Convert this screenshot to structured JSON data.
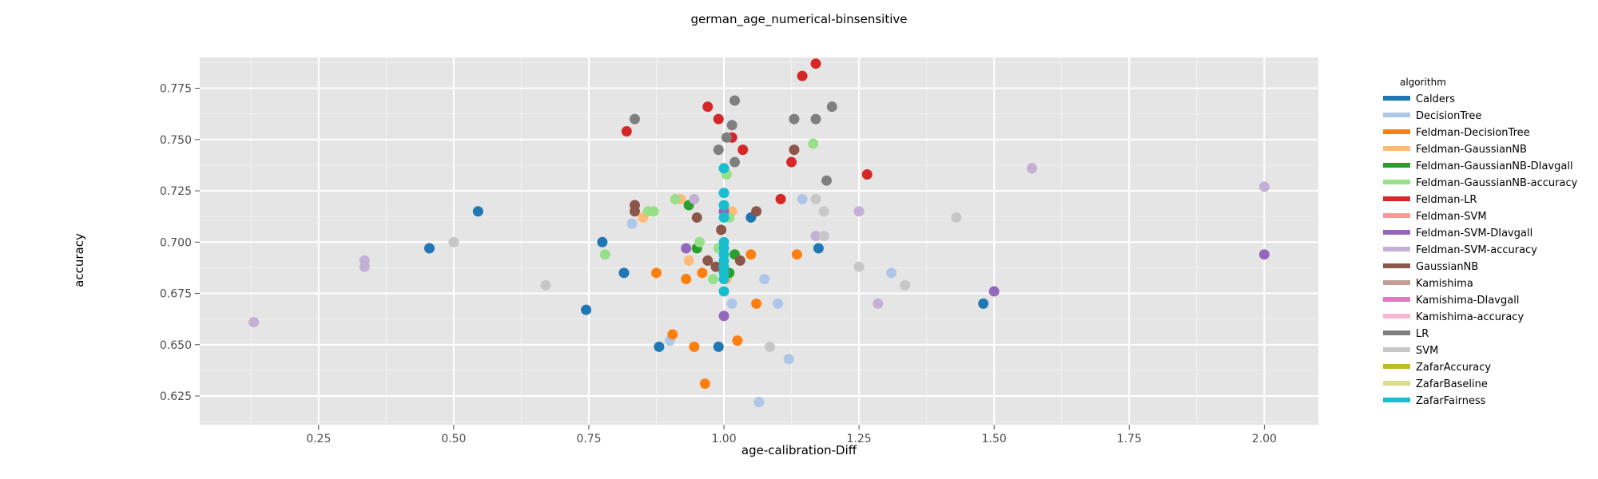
{
  "chart_data": {
    "type": "scatter",
    "title": "german_age_numerical-binsensitive",
    "xlabel": "age-calibration-Diff",
    "ylabel": "accuracy",
    "xlim": [
      0.03,
      2.1
    ],
    "ylim": [
      0.611,
      0.79
    ],
    "xticks": [
      0.25,
      0.5,
      0.75,
      1.0,
      1.25,
      1.5,
      1.75,
      2.0
    ],
    "xtick_labels": [
      "0.25",
      "0.50",
      "0.75",
      "1.00",
      "1.25",
      "1.50",
      "1.75",
      "2.00"
    ],
    "yticks": [
      0.625,
      0.65,
      0.675,
      0.7,
      0.725,
      0.75,
      0.775
    ],
    "ytick_labels": [
      "0.625",
      "0.650",
      "0.675",
      "0.700",
      "0.725",
      "0.750",
      "0.775"
    ],
    "grid": true,
    "legend_title": "algorithm",
    "legend_position": "right",
    "series": [
      {
        "name": "Calders",
        "color": "#1f77b4",
        "points": [
          [
            0.455,
            0.697
          ],
          [
            0.545,
            0.715
          ],
          [
            0.745,
            0.667
          ],
          [
            0.775,
            0.7
          ],
          [
            0.815,
            0.685
          ],
          [
            0.88,
            0.649
          ],
          [
            0.99,
            0.649
          ],
          [
            1.05,
            0.712
          ],
          [
            1.175,
            0.697
          ],
          [
            1.48,
            0.67
          ]
        ]
      },
      {
        "name": "DecisionTree",
        "color": "#aec7e8",
        "points": [
          [
            0.83,
            0.709
          ],
          [
            0.9,
            0.652
          ],
          [
            1.015,
            0.67
          ],
          [
            1.065,
            0.622
          ],
          [
            1.075,
            0.682
          ],
          [
            1.1,
            0.67
          ],
          [
            1.12,
            0.643
          ],
          [
            1.145,
            0.721
          ],
          [
            1.31,
            0.685
          ]
        ]
      },
      {
        "name": "Feldman-DecisionTree",
        "color": "#ff7f0e",
        "points": [
          [
            0.875,
            0.685
          ],
          [
            0.905,
            0.655
          ],
          [
            0.93,
            0.682
          ],
          [
            0.945,
            0.649
          ],
          [
            0.96,
            0.685
          ],
          [
            0.965,
            0.631
          ],
          [
            1.025,
            0.652
          ],
          [
            1.05,
            0.694
          ],
          [
            1.06,
            0.67
          ],
          [
            1.135,
            0.694
          ]
        ]
      },
      {
        "name": "Feldman-GaussianNB",
        "color": "#ffbb78",
        "points": [
          [
            0.85,
            0.712
          ],
          [
            0.92,
            0.721
          ],
          [
            0.935,
            0.691
          ],
          [
            1.005,
            0.682
          ],
          [
            1.015,
            0.715
          ]
        ]
      },
      {
        "name": "Feldman-GaussianNB-DIavgall",
        "color": "#2ca02c",
        "points": [
          [
            0.935,
            0.718
          ],
          [
            0.95,
            0.697
          ],
          [
            1.01,
            0.685
          ],
          [
            1.02,
            0.694
          ]
        ]
      },
      {
        "name": "Feldman-GaussianNB-accuracy",
        "color": "#98df8a",
        "points": [
          [
            0.78,
            0.694
          ],
          [
            0.86,
            0.715
          ],
          [
            0.87,
            0.715
          ],
          [
            0.91,
            0.721
          ],
          [
            0.955,
            0.7
          ],
          [
            0.98,
            0.682
          ],
          [
            0.99,
            0.697
          ],
          [
            1.005,
            0.733
          ],
          [
            1.01,
            0.712
          ],
          [
            1.165,
            0.748
          ]
        ]
      },
      {
        "name": "Feldman-LR",
        "color": "#d62728",
        "points": [
          [
            0.82,
            0.754
          ],
          [
            0.97,
            0.766
          ],
          [
            0.99,
            0.76
          ],
          [
            1.015,
            0.751
          ],
          [
            1.035,
            0.745
          ],
          [
            1.105,
            0.721
          ],
          [
            1.125,
            0.739
          ],
          [
            1.145,
            0.781
          ],
          [
            1.17,
            0.787
          ],
          [
            1.265,
            0.733
          ]
        ]
      },
      {
        "name": "Feldman-SVM",
        "color": "#ff9896",
        "points": []
      },
      {
        "name": "Feldman-SVM-DIavgall",
        "color": "#9467bd",
        "points": [
          [
            0.93,
            0.697
          ],
          [
            1.0,
            0.664
          ],
          [
            1.0,
            0.715
          ],
          [
            1.5,
            0.676
          ],
          [
            2.0,
            0.694
          ]
        ]
      },
      {
        "name": "Feldman-SVM-accuracy",
        "color": "#c5b0d5",
        "points": [
          [
            0.13,
            0.661
          ],
          [
            0.335,
            0.691
          ],
          [
            0.335,
            0.688
          ],
          [
            0.945,
            0.721
          ],
          [
            1.17,
            0.703
          ],
          [
            1.25,
            0.715
          ],
          [
            1.285,
            0.67
          ],
          [
            1.57,
            0.736
          ],
          [
            2.0,
            0.727
          ]
        ]
      },
      {
        "name": "GaussianNB",
        "color": "#8c564b",
        "points": [
          [
            0.835,
            0.715
          ],
          [
            0.835,
            0.718
          ],
          [
            0.95,
            0.712
          ],
          [
            0.97,
            0.691
          ],
          [
            0.985,
            0.688
          ],
          [
            0.995,
            0.706
          ],
          [
            1.03,
            0.691
          ],
          [
            1.06,
            0.715
          ],
          [
            1.13,
            0.745
          ]
        ]
      },
      {
        "name": "Kamishima",
        "color": "#c49c94",
        "points": []
      },
      {
        "name": "Kamishima-DIavgall",
        "color": "#e377c2",
        "points": []
      },
      {
        "name": "Kamishima-accuracy",
        "color": "#f7b6d2",
        "points": []
      },
      {
        "name": "LR",
        "color": "#7f7f7f",
        "points": [
          [
            0.835,
            0.76
          ],
          [
            0.99,
            0.745
          ],
          [
            1.005,
            0.751
          ],
          [
            1.015,
            0.757
          ],
          [
            1.02,
            0.739
          ],
          [
            1.02,
            0.769
          ],
          [
            1.13,
            0.76
          ],
          [
            1.17,
            0.76
          ],
          [
            1.19,
            0.73
          ],
          [
            1.2,
            0.766
          ]
        ]
      },
      {
        "name": "SVM",
        "color": "#c7c7c7",
        "points": [
          [
            0.5,
            0.7
          ],
          [
            0.67,
            0.679
          ],
          [
            1.085,
            0.649
          ],
          [
            1.17,
            0.721
          ],
          [
            1.185,
            0.715
          ],
          [
            1.185,
            0.703
          ],
          [
            1.25,
            0.688
          ],
          [
            1.335,
            0.679
          ],
          [
            1.43,
            0.712
          ]
        ]
      },
      {
        "name": "ZafarAccuracy",
        "color": "#bcbd22",
        "points": []
      },
      {
        "name": "ZafarBaseline",
        "color": "#dbdb8d",
        "points": []
      },
      {
        "name": "ZafarFairness",
        "color": "#17becf",
        "points": [
          [
            1.0,
            0.736
          ],
          [
            1.0,
            0.724
          ],
          [
            1.0,
            0.718
          ],
          [
            1.0,
            0.712
          ],
          [
            1.0,
            0.7
          ],
          [
            1.0,
            0.697
          ],
          [
            1.0,
            0.694
          ],
          [
            1.0,
            0.691
          ],
          [
            1.0,
            0.688
          ],
          [
            1.0,
            0.685
          ],
          [
            1.0,
            0.682
          ],
          [
            1.0,
            0.676
          ]
        ]
      }
    ]
  }
}
